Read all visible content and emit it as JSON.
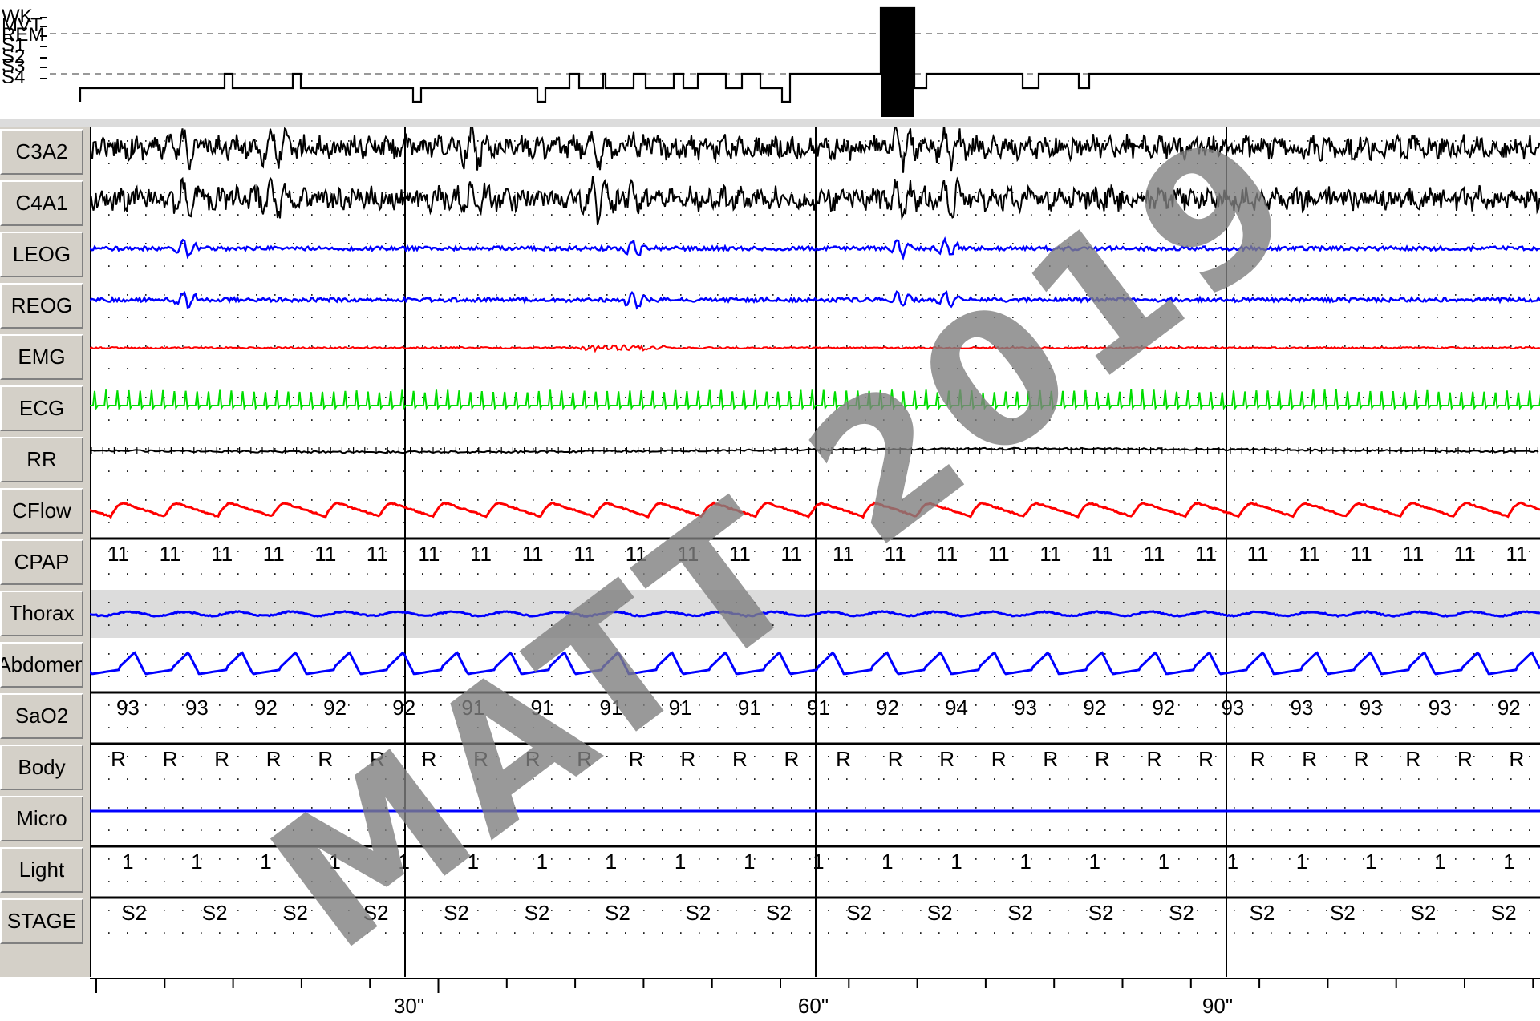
{
  "hypnogram": {
    "stage_labels": [
      "WK",
      "MVT",
      "REM",
      "S1",
      "S2",
      "S3",
      "S4"
    ]
  },
  "channels": [
    {
      "label": "C3A2",
      "color": "#000000",
      "type": "eeg"
    },
    {
      "label": "C4A1",
      "color": "#000000",
      "type": "eeg"
    },
    {
      "label": "LEOG",
      "color": "#0000ff",
      "type": "eog"
    },
    {
      "label": "REOG",
      "color": "#0000ff",
      "type": "eog"
    },
    {
      "label": "EMG",
      "color": "#ff0000",
      "type": "emg"
    },
    {
      "label": "ECG",
      "color": "#00dd00",
      "type": "ecg"
    },
    {
      "label": "RR",
      "color": "#000000",
      "type": "rr"
    },
    {
      "label": "CFlow",
      "color": "#ff0000",
      "type": "flow"
    },
    {
      "label": "CPAP",
      "color": "#000000",
      "type": "values",
      "values": [
        "11",
        "11",
        "11",
        "11",
        "11",
        "11",
        "11",
        "11",
        "11",
        "11",
        "11",
        "11",
        "11",
        "11",
        "11",
        "11",
        "11",
        "11",
        "11",
        "11",
        "11",
        "11",
        "11",
        "11",
        "11",
        "11",
        "11",
        "11"
      ]
    },
    {
      "label": "Thorax",
      "color": "#0000ff",
      "type": "thorax"
    },
    {
      "label": "Abdomen",
      "color": "#0000ff",
      "type": "abdomen"
    },
    {
      "label": "SaO2",
      "color": "#000000",
      "type": "values",
      "values": [
        "93",
        "93",
        "92",
        "92",
        "92",
        "91",
        "91",
        "91",
        "91",
        "91",
        "91",
        "92",
        "94",
        "93",
        "92",
        "92",
        "93",
        "93",
        "93",
        "93",
        "92"
      ]
    },
    {
      "label": "Body",
      "color": "#000000",
      "type": "values",
      "values": [
        "R",
        "R",
        "R",
        "R",
        "R",
        "R",
        "R",
        "R",
        "R",
        "R",
        "R",
        "R",
        "R",
        "R",
        "R",
        "R",
        "R",
        "R",
        "R",
        "R",
        "R",
        "R",
        "R",
        "R",
        "R",
        "R",
        "R",
        "R"
      ]
    },
    {
      "label": "Micro",
      "color": "#0000ff",
      "type": "flat"
    },
    {
      "label": "Light",
      "color": "#000000",
      "type": "values",
      "values": [
        "1",
        "1",
        "1",
        "1",
        "1",
        "1",
        "1",
        "1",
        "1",
        "1",
        "1",
        "1",
        "1",
        "1",
        "1",
        "1",
        "1",
        "1",
        "1",
        "1",
        "1"
      ]
    },
    {
      "label": "STAGE",
      "color": "#000000",
      "type": "values",
      "values": [
        "S2",
        "S2",
        "S2",
        "S2",
        "S2",
        "S2",
        "S2",
        "S2",
        "S2",
        "S2",
        "S2",
        "S2",
        "S2",
        "S2",
        "S2",
        "S2",
        "S2",
        "S2"
      ]
    }
  ],
  "time_axis": {
    "labels": [
      "30\"",
      "60\"",
      "90\""
    ]
  },
  "watermark": "MATT 2019"
}
